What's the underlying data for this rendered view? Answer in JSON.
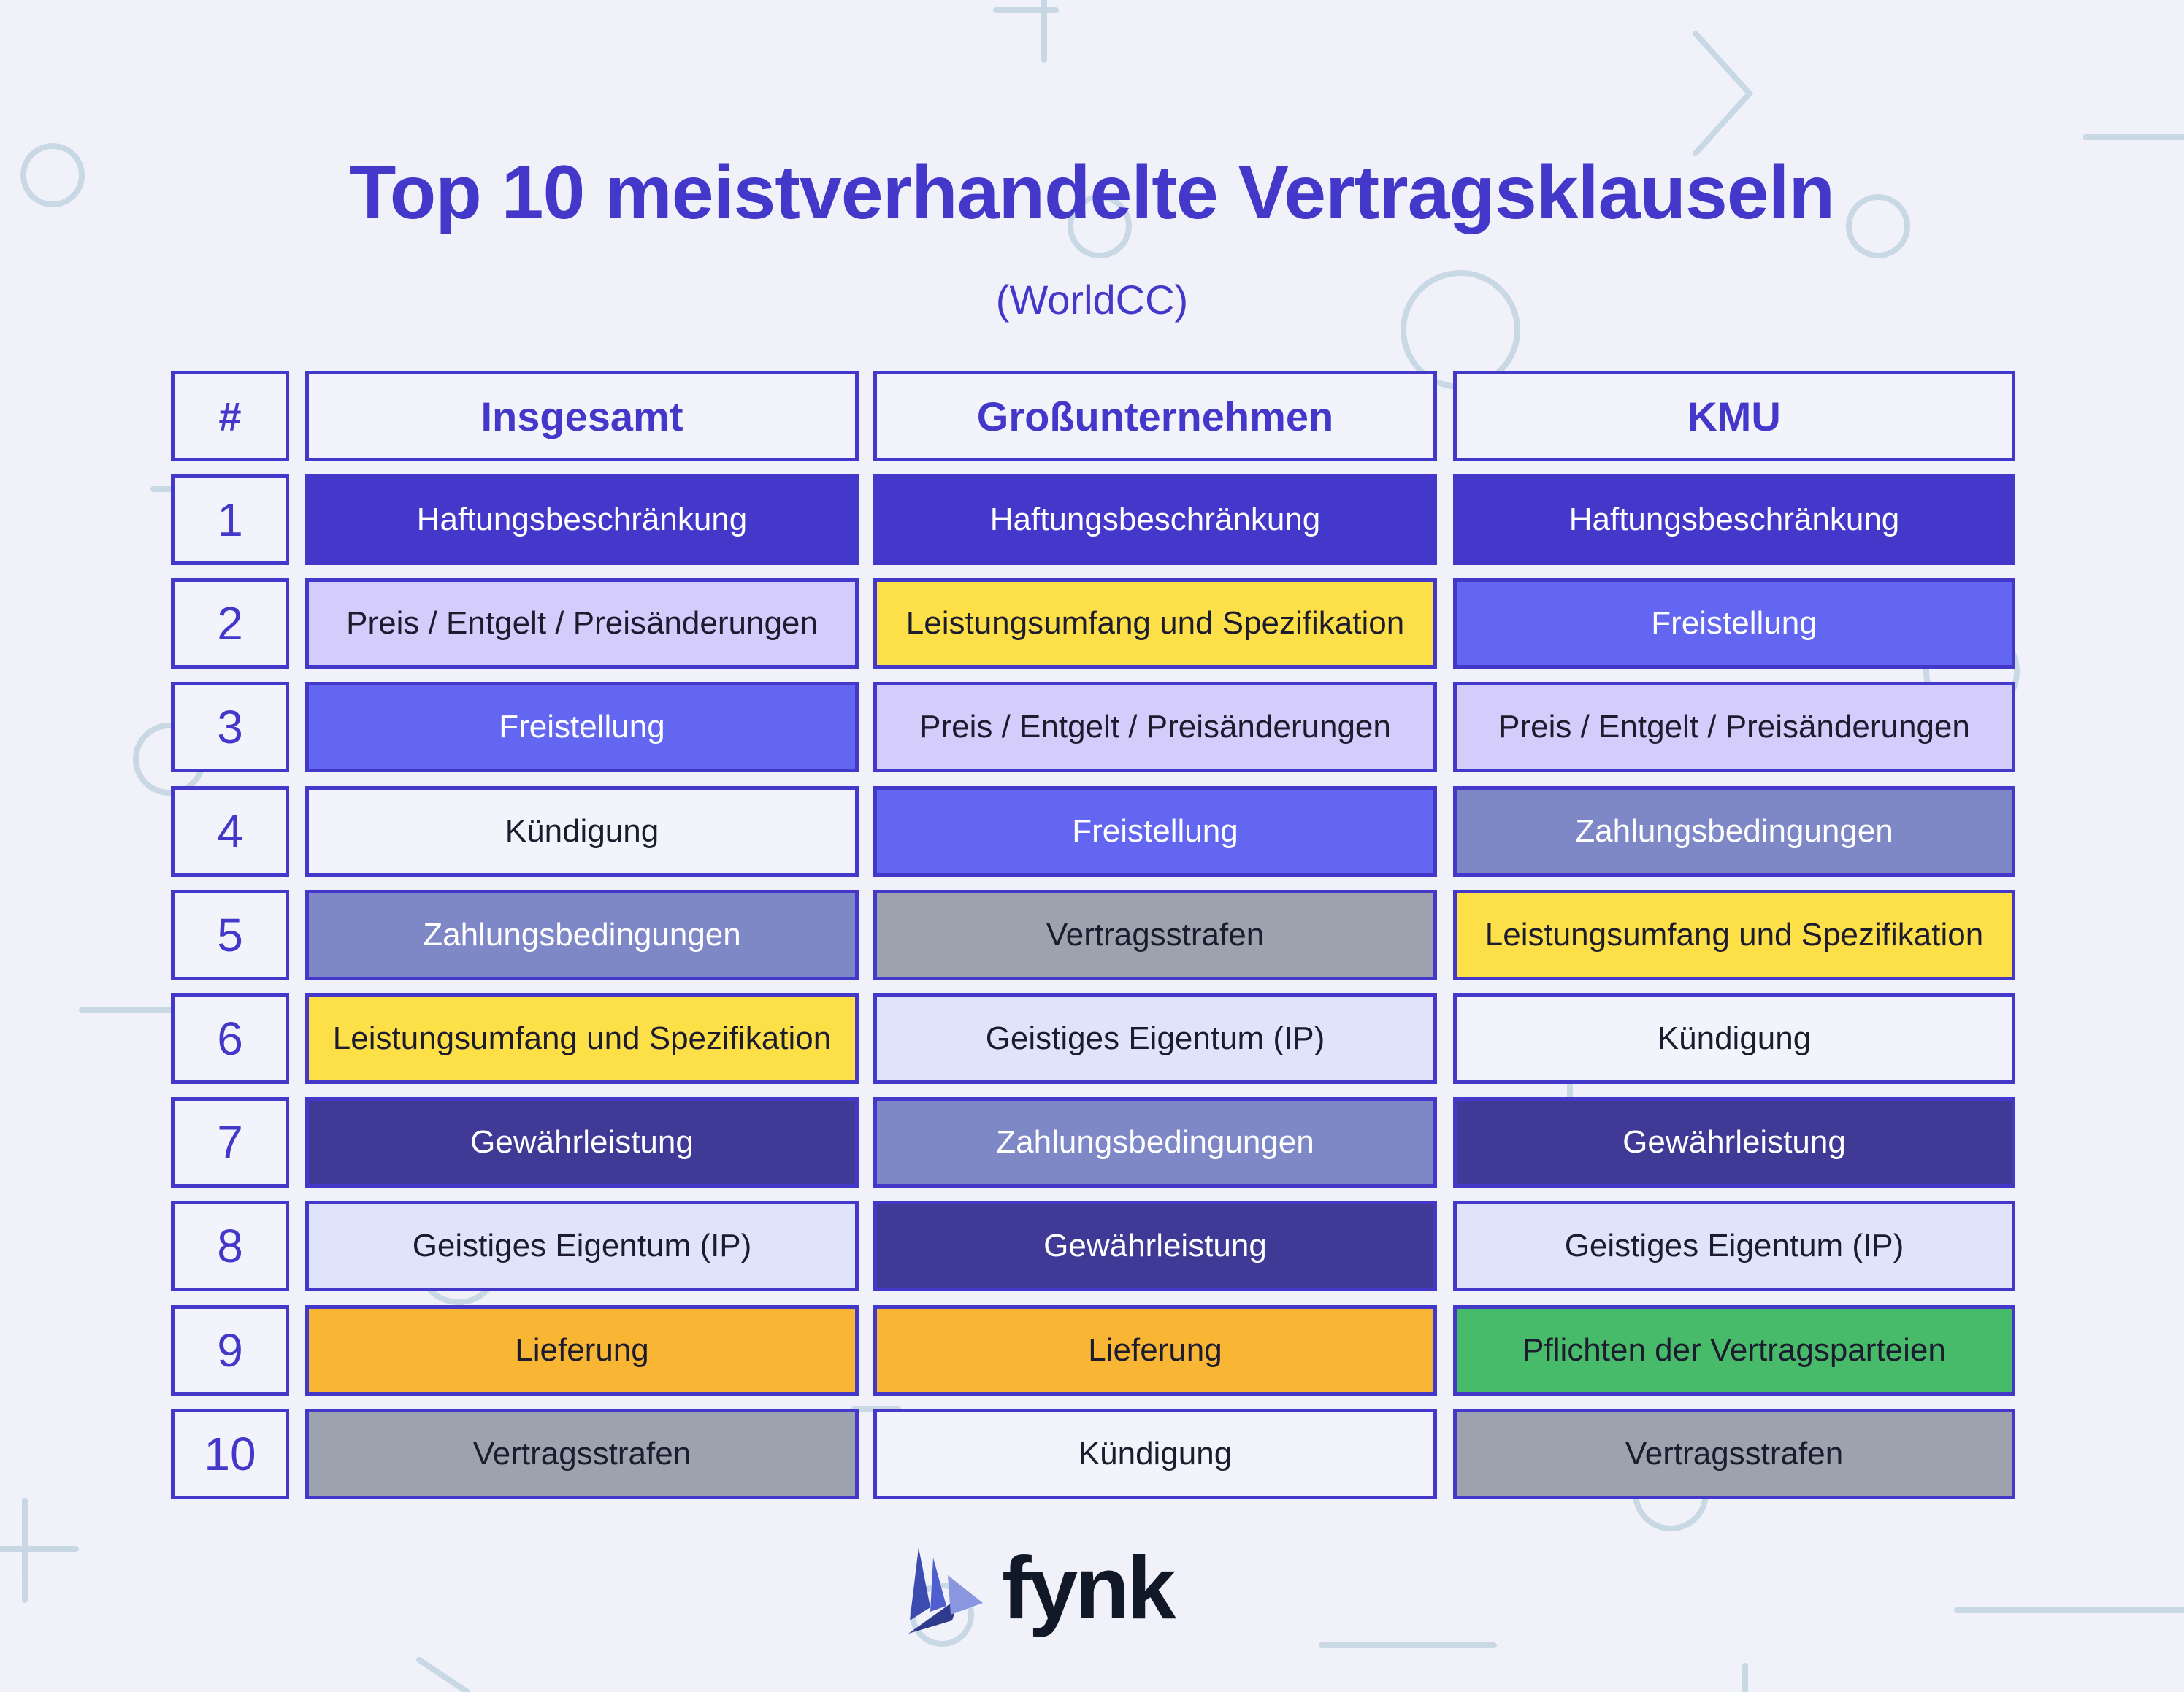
{
  "title": "Top 10 meistverhandelte Vertragsklauseln",
  "subtitle": "(WorldCC)",
  "table": {
    "headers": [
      "#",
      "Insgesamt",
      "Großunternehmen",
      "KMU"
    ],
    "rows": [
      {
        "rank": "1",
        "insgesamt": "Haftungsbeschränkung",
        "grossunternehmen": "Haftungsbeschränkung",
        "kmu": "Haftungsbeschränkung"
      },
      {
        "rank": "2",
        "insgesamt": "Preis / Entgelt / Preisänderungen",
        "grossunternehmen": "Leistungsumfang und Spezifikation",
        "kmu": "Freistellung"
      },
      {
        "rank": "3",
        "insgesamt": "Freistellung",
        "grossunternehmen": "Preis / Entgelt / Preisänderungen",
        "kmu": "Preis / Entgelt / Preisänderungen"
      },
      {
        "rank": "4",
        "insgesamt": "Kündigung",
        "grossunternehmen": "Freistellung",
        "kmu": "Zahlungsbedingungen"
      },
      {
        "rank": "5",
        "insgesamt": "Zahlungsbedingungen",
        "grossunternehmen": "Vertragsstrafen",
        "kmu": "Leistungsumfang und Spezifikation"
      },
      {
        "rank": "6",
        "insgesamt": "Leistungsumfang und Spezifikation",
        "grossunternehmen": "Geistiges Eigentum (IP)",
        "kmu": "Kündigung"
      },
      {
        "rank": "7",
        "insgesamt": "Gewährleistung",
        "grossunternehmen": "Zahlungsbedingungen",
        "kmu": "Gewährleistung"
      },
      {
        "rank": "8",
        "insgesamt": "Geistiges Eigentum (IP)",
        "grossunternehmen": "Gewährleistung",
        "kmu": "Geistiges Eigentum (IP)"
      },
      {
        "rank": "9",
        "insgesamt": "Lieferung",
        "grossunternehmen": "Lieferung",
        "kmu": "Pflichten der Vertragsparteien"
      },
      {
        "rank": "10",
        "insgesamt": "Vertragsstrafen",
        "grossunternehmen": "Kündigung",
        "kmu": "Vertragsstrafen"
      }
    ]
  },
  "clause_colors": {
    "Haftungsbeschränkung": {
      "bg": "#4338ca",
      "fg": "#ffffff"
    },
    "Preis / Entgelt / Preisänderungen": {
      "bg": "#d4cdfb",
      "fg": "#1c1c2e"
    },
    "Leistungsumfang und Spezifikation": {
      "bg": "#fde047",
      "fg": "#1c1c2e"
    },
    "Freistellung": {
      "bg": "#6366f1",
      "fg": "#ffffff"
    },
    "Kündigung": {
      "bg": "#f3f4fb",
      "fg": "#1c1c2e"
    },
    "Zahlungsbedingungen": {
      "bg": "#7f88c7",
      "fg": "#ffffff"
    },
    "Vertragsstrafen": {
      "bg": "#9ca3af",
      "fg": "#1c1c2e"
    },
    "Geistiges Eigentum (IP)": {
      "bg": "#e0e4fb",
      "fg": "#1c1c2e"
    },
    "Gewährleistung": {
      "bg": "#3f3a96",
      "fg": "#ffffff"
    },
    "Lieferung": {
      "bg": "#f8b634",
      "fg": "#1c1c2e"
    },
    "Pflichten der Vertragsparteien": {
      "bg": "#48bb6a",
      "fg": "#1c1c2e"
    }
  },
  "logo": {
    "text": "fynk",
    "icon": "bird-icon"
  }
}
